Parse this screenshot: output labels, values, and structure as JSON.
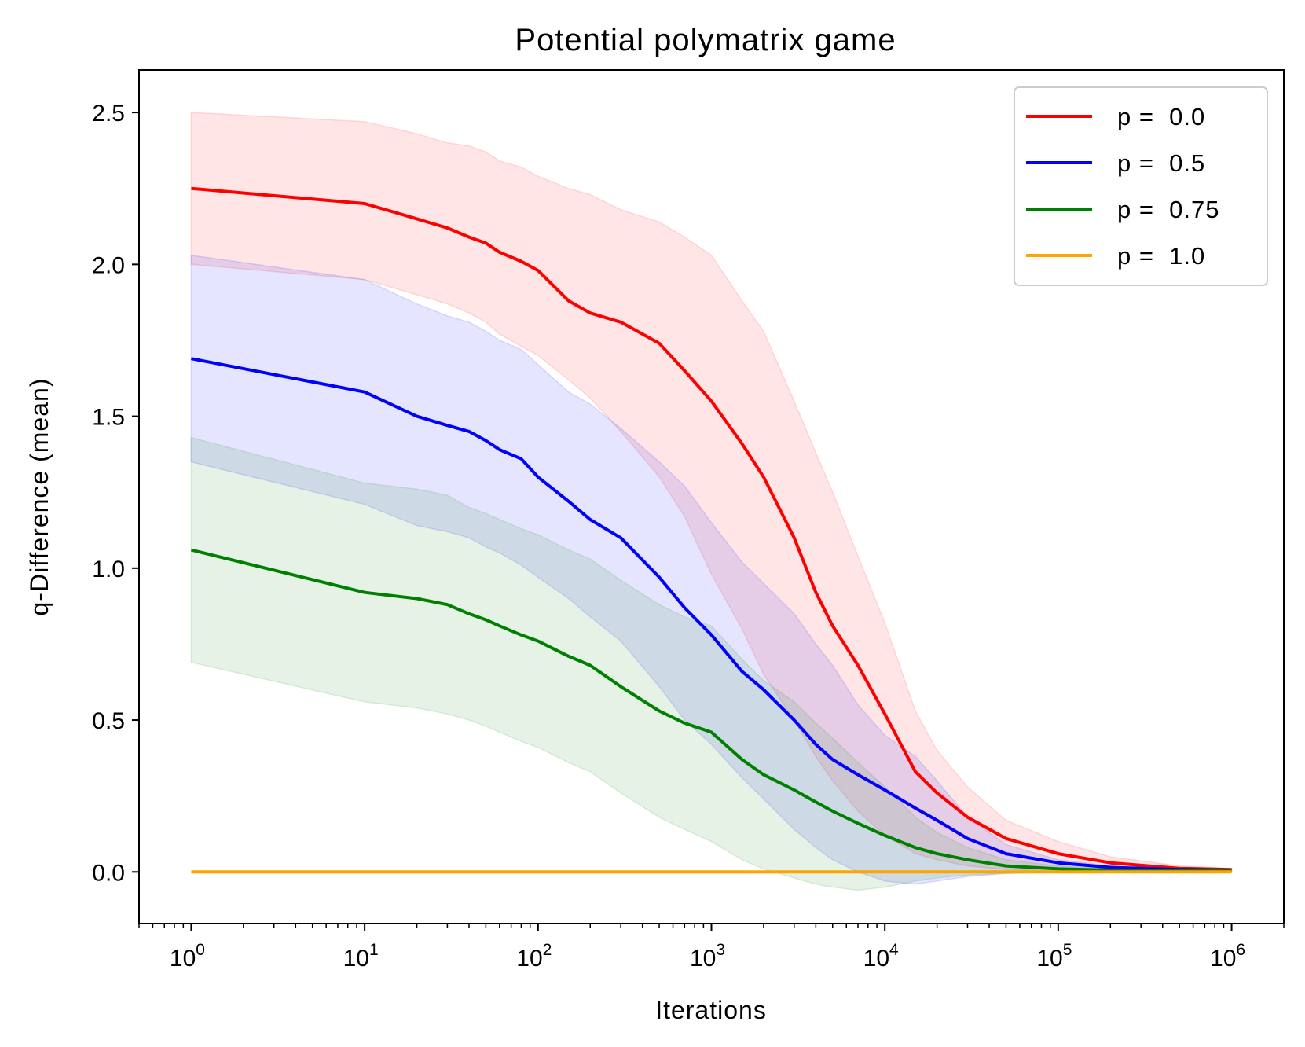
{
  "chart_data": {
    "type": "line",
    "title": "Potential polymatrix game",
    "xlabel": "Iterations",
    "ylabel": "q-Difference (mean)",
    "xscale": "log",
    "xlim": [
      0.5,
      2000000
    ],
    "ylim": [
      -0.17,
      2.64
    ],
    "y_ticks": [
      0.0,
      0.5,
      1.0,
      1.5,
      2.0,
      2.5
    ],
    "y_tick_labels": [
      "0.0",
      "0.5",
      "1.0",
      "1.5",
      "2.0",
      "2.5"
    ],
    "x_ticks": [
      1,
      10,
      100,
      1000,
      10000,
      100000,
      1000000
    ],
    "x_tick_labels": [
      {
        "base": "10",
        "exp": "0"
      },
      {
        "base": "10",
        "exp": "1"
      },
      {
        "base": "10",
        "exp": "2"
      },
      {
        "base": "10",
        "exp": "3"
      },
      {
        "base": "10",
        "exp": "4"
      },
      {
        "base": "10",
        "exp": "5"
      },
      {
        "base": "10",
        "exp": "6"
      }
    ],
    "legend_position": "top-right",
    "grid": false,
    "series": [
      {
        "name": "p =  0.0",
        "color": "#ff0000",
        "x": [
          1,
          10,
          20,
          30,
          40,
          50,
          60,
          80,
          100,
          150,
          200,
          300,
          500,
          700,
          1000,
          1500,
          2000,
          3000,
          4000,
          5000,
          7000,
          10000,
          15000,
          20000,
          30000,
          50000,
          100000,
          200000,
          500000,
          1000000
        ],
        "y": [
          2.25,
          2.2,
          2.15,
          2.12,
          2.09,
          2.07,
          2.04,
          2.01,
          1.98,
          1.88,
          1.84,
          1.81,
          1.74,
          1.65,
          1.55,
          1.41,
          1.3,
          1.1,
          0.92,
          0.81,
          0.68,
          0.52,
          0.33,
          0.26,
          0.18,
          0.11,
          0.06,
          0.03,
          0.012,
          0.008
        ],
        "y_lower": [
          2.0,
          1.95,
          1.9,
          1.87,
          1.84,
          1.81,
          1.77,
          1.73,
          1.7,
          1.62,
          1.56,
          1.45,
          1.3,
          1.17,
          0.98,
          0.8,
          0.65,
          0.5,
          0.38,
          0.3,
          0.2,
          0.12,
          0.06,
          0.04,
          0.02,
          0.008,
          0.004,
          0.003,
          0.002,
          0.002
        ],
        "y_upper": [
          2.5,
          2.47,
          2.43,
          2.4,
          2.39,
          2.37,
          2.34,
          2.32,
          2.29,
          2.25,
          2.23,
          2.18,
          2.14,
          2.09,
          2.03,
          1.88,
          1.78,
          1.55,
          1.38,
          1.25,
          1.04,
          0.82,
          0.53,
          0.4,
          0.28,
          0.17,
          0.1,
          0.05,
          0.02,
          0.012
        ]
      },
      {
        "name": "p =  0.5",
        "color": "#0000ff",
        "x": [
          1,
          10,
          20,
          30,
          40,
          50,
          60,
          80,
          100,
          150,
          200,
          300,
          500,
          700,
          1000,
          1500,
          2000,
          3000,
          4000,
          5000,
          7000,
          10000,
          15000,
          20000,
          30000,
          50000,
          100000,
          200000,
          500000,
          1000000
        ],
        "y": [
          1.69,
          1.58,
          1.5,
          1.47,
          1.45,
          1.42,
          1.39,
          1.36,
          1.3,
          1.22,
          1.16,
          1.1,
          0.97,
          0.87,
          0.78,
          0.66,
          0.6,
          0.5,
          0.42,
          0.37,
          0.32,
          0.27,
          0.21,
          0.17,
          0.11,
          0.06,
          0.03,
          0.015,
          0.008,
          0.006
        ],
        "y_lower": [
          1.35,
          1.21,
          1.14,
          1.12,
          1.1,
          1.07,
          1.05,
          1.01,
          0.97,
          0.9,
          0.84,
          0.76,
          0.61,
          0.5,
          0.42,
          0.31,
          0.24,
          0.14,
          0.08,
          0.04,
          0.0,
          -0.03,
          -0.04,
          -0.03,
          -0.015,
          -0.005,
          0.0,
          0.0,
          0.002,
          0.003
        ],
        "y_upper": [
          2.03,
          1.95,
          1.87,
          1.83,
          1.81,
          1.78,
          1.75,
          1.72,
          1.67,
          1.58,
          1.54,
          1.46,
          1.35,
          1.27,
          1.15,
          1.02,
          0.95,
          0.85,
          0.75,
          0.68,
          0.55,
          0.45,
          0.38,
          0.3,
          0.18,
          0.09,
          0.04,
          0.02,
          0.01,
          0.008
        ]
      },
      {
        "name": "p =  0.75",
        "color": "#008000",
        "x": [
          1,
          10,
          20,
          30,
          40,
          50,
          60,
          80,
          100,
          150,
          200,
          300,
          500,
          700,
          1000,
          1500,
          2000,
          3000,
          4000,
          5000,
          7000,
          10000,
          15000,
          20000,
          30000,
          50000,
          100000,
          200000,
          500000,
          1000000
        ],
        "y": [
          1.06,
          0.92,
          0.9,
          0.88,
          0.85,
          0.83,
          0.81,
          0.78,
          0.76,
          0.71,
          0.68,
          0.61,
          0.53,
          0.49,
          0.46,
          0.37,
          0.32,
          0.27,
          0.23,
          0.2,
          0.16,
          0.12,
          0.08,
          0.06,
          0.04,
          0.02,
          0.01,
          0.006,
          0.004,
          0.003
        ],
        "y_lower": [
          0.69,
          0.56,
          0.54,
          0.52,
          0.5,
          0.48,
          0.46,
          0.43,
          0.41,
          0.36,
          0.33,
          0.26,
          0.18,
          0.14,
          0.1,
          0.04,
          0.01,
          -0.02,
          -0.04,
          -0.05,
          -0.06,
          -0.05,
          -0.03,
          -0.02,
          -0.01,
          -0.005,
          0.0,
          0.0,
          0.001,
          0.002
        ],
        "y_upper": [
          1.43,
          1.28,
          1.26,
          1.24,
          1.2,
          1.18,
          1.16,
          1.13,
          1.11,
          1.06,
          1.03,
          0.96,
          0.88,
          0.84,
          0.81,
          0.7,
          0.63,
          0.56,
          0.49,
          0.44,
          0.36,
          0.28,
          0.18,
          0.13,
          0.08,
          0.04,
          0.02,
          0.012,
          0.007,
          0.005
        ]
      },
      {
        "name": "p =  1.0",
        "color": "#ffa500",
        "x": [
          1,
          1000000
        ],
        "y": [
          0.0,
          0.0
        ],
        "y_lower": [
          0.0,
          0.0
        ],
        "y_upper": [
          0.0,
          0.0
        ]
      }
    ]
  }
}
